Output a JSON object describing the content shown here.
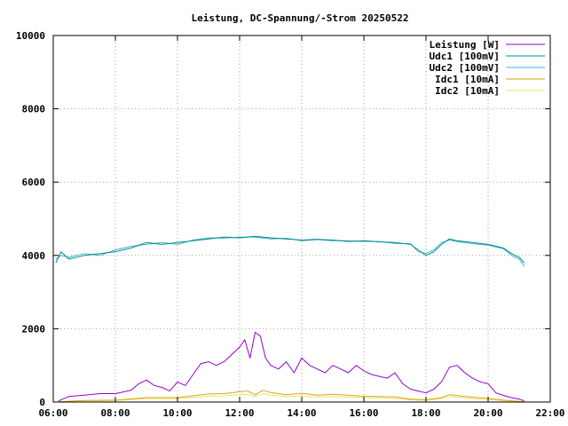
{
  "chart_data": {
    "type": "line",
    "title": "Leistung, DC-Spannung/-Strom 20250522",
    "xlabel": "",
    "ylabel": "",
    "xlim": [
      "06:00",
      "22:00"
    ],
    "ylim": [
      0,
      10000
    ],
    "x_ticks": [
      "06:00",
      "08:00",
      "10:00",
      "12:00",
      "14:00",
      "16:00",
      "18:00",
      "20:00",
      "22:00"
    ],
    "y_ticks": [
      0,
      2000,
      4000,
      6000,
      8000,
      10000
    ],
    "y_tick_labels": [
      "0",
      "2000",
      "4000",
      "6000",
      "8000",
      "10000"
    ],
    "grid": true,
    "legend_position": "top-right",
    "colors": {
      "leistung": "#9400d3",
      "udc1": "#008b8b",
      "udc2": "#3fb5d0",
      "idc1": "#daa520",
      "idc2": "#f0e060"
    },
    "series": [
      {
        "name": "Leistung [W]",
        "key": "leistung",
        "x": [
          "06:10",
          "06:30",
          "07:00",
          "07:30",
          "08:00",
          "08:30",
          "08:45",
          "09:00",
          "09:15",
          "09:30",
          "09:45",
          "10:00",
          "10:15",
          "10:30",
          "10:45",
          "11:00",
          "11:15",
          "11:30",
          "11:45",
          "12:00",
          "12:10",
          "12:20",
          "12:30",
          "12:40",
          "12:50",
          "13:00",
          "13:15",
          "13:30",
          "13:45",
          "14:00",
          "14:15",
          "14:30",
          "14:45",
          "15:00",
          "15:15",
          "15:30",
          "15:45",
          "16:00",
          "16:15",
          "16:30",
          "16:45",
          "17:00",
          "17:15",
          "17:30",
          "17:45",
          "18:00",
          "18:15",
          "18:30",
          "18:45",
          "19:00",
          "19:15",
          "19:30",
          "19:45",
          "20:00",
          "20:15",
          "20:30",
          "20:45",
          "21:00",
          "21:10"
        ],
        "values": [
          30,
          150,
          190,
          230,
          230,
          320,
          500,
          600,
          450,
          400,
          300,
          550,
          450,
          750,
          1050,
          1100,
          1000,
          1100,
          1300,
          1500,
          1700,
          1200,
          1900,
          1800,
          1200,
          1000,
          900,
          1100,
          800,
          1200,
          1000,
          900,
          800,
          1000,
          900,
          800,
          1000,
          850,
          750,
          700,
          650,
          800,
          500,
          350,
          300,
          250,
          350,
          550,
          950,
          1000,
          800,
          650,
          550,
          500,
          250,
          180,
          120,
          80,
          30
        ]
      },
      {
        "name": "Udc1 [100mV]",
        "key": "udc1",
        "x": [
          "06:05",
          "06:15",
          "06:30",
          "07:00",
          "07:30",
          "08:00",
          "08:30",
          "09:00",
          "09:30",
          "10:00",
          "10:30",
          "11:00",
          "11:30",
          "12:00",
          "12:30",
          "13:00",
          "13:30",
          "14:00",
          "14:30",
          "15:00",
          "15:30",
          "16:00",
          "16:30",
          "17:00",
          "17:30",
          "17:45",
          "18:00",
          "18:15",
          "18:30",
          "18:45",
          "19:00",
          "19:30",
          "20:00",
          "20:30",
          "20:45",
          "21:00",
          "21:10"
        ],
        "values": [
          3800,
          4100,
          3900,
          4000,
          4050,
          4100,
          4200,
          4350,
          4300,
          4350,
          4400,
          4450,
          4500,
          4480,
          4520,
          4480,
          4450,
          4420,
          4440,
          4420,
          4380,
          4400,
          4370,
          4350,
          4300,
          4150,
          4000,
          4100,
          4300,
          4450,
          4400,
          4350,
          4300,
          4200,
          4050,
          3950,
          3800
        ]
      },
      {
        "name": "Udc2 [100mV]",
        "key": "udc2",
        "x": [
          "06:05",
          "06:15",
          "06:30",
          "07:00",
          "07:30",
          "08:00",
          "08:30",
          "09:00",
          "09:30",
          "10:00",
          "10:30",
          "11:00",
          "11:30",
          "12:00",
          "12:30",
          "13:00",
          "13:30",
          "14:00",
          "14:30",
          "15:00",
          "15:30",
          "16:00",
          "16:30",
          "17:00",
          "17:30",
          "17:45",
          "18:00",
          "18:15",
          "18:30",
          "18:45",
          "19:00",
          "19:30",
          "20:00",
          "20:30",
          "20:45",
          "21:00",
          "21:10"
        ],
        "values": [
          3900,
          4000,
          3950,
          4050,
          4000,
          4150,
          4250,
          4300,
          4350,
          4300,
          4420,
          4480,
          4470,
          4500,
          4500,
          4450,
          4470,
          4400,
          4430,
          4400,
          4400,
          4380,
          4380,
          4330,
          4320,
          4100,
          4050,
          4150,
          4350,
          4420,
          4380,
          4320,
          4280,
          4180,
          4000,
          3900,
          3700
        ]
      },
      {
        "name": "Idc1 [10mA]",
        "key": "idc1",
        "x": [
          "06:10",
          "07:00",
          "08:00",
          "09:00",
          "10:00",
          "11:00",
          "11:30",
          "12:00",
          "12:15",
          "12:30",
          "12:45",
          "13:00",
          "13:30",
          "14:00",
          "14:30",
          "15:00",
          "16:00",
          "17:00",
          "17:30",
          "18:00",
          "18:30",
          "18:45",
          "19:00",
          "19:30",
          "20:00",
          "20:30",
          "21:00",
          "21:10"
        ],
        "values": [
          10,
          40,
          50,
          120,
          120,
          220,
          230,
          280,
          300,
          200,
          320,
          260,
          200,
          240,
          190,
          210,
          160,
          140,
          80,
          60,
          120,
          200,
          180,
          130,
          100,
          50,
          20,
          10
        ]
      },
      {
        "name": "Idc2 [10mA]",
        "key": "idc2",
        "x": [
          "06:10",
          "07:00",
          "08:00",
          "09:00",
          "10:00",
          "11:00",
          "11:30",
          "12:00",
          "12:15",
          "12:30",
          "12:45",
          "13:00",
          "13:30",
          "14:00",
          "14:30",
          "15:00",
          "16:00",
          "17:00",
          "17:30",
          "18:00",
          "18:30",
          "18:45",
          "19:00",
          "19:30",
          "20:00",
          "20:30",
          "21:00",
          "21:10"
        ],
        "values": [
          5,
          30,
          40,
          90,
          90,
          160,
          170,
          200,
          210,
          150,
          230,
          190,
          150,
          170,
          140,
          150,
          120,
          100,
          60,
          45,
          90,
          150,
          130,
          95,
          70,
          35,
          15,
          5
        ]
      }
    ]
  }
}
